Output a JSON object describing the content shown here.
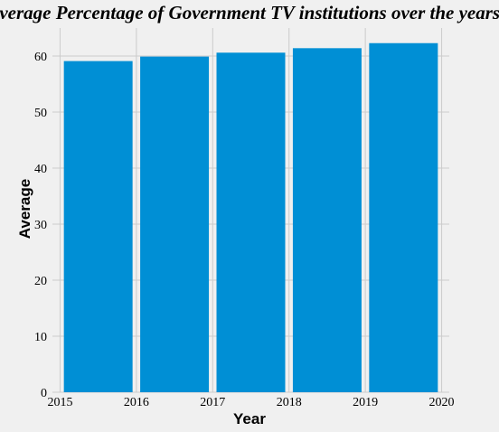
{
  "chart_data": {
    "type": "bar",
    "title": "Average Percentage of Government TV institutions over the years",
    "xlabel": "Year",
    "ylabel": "Average",
    "categories": [
      "2015",
      "2016",
      "2017",
      "2018",
      "2019"
    ],
    "values": [
      59.1,
      59.9,
      60.6,
      61.4,
      62.3
    ],
    "x_ticks": [
      "2015",
      "2016",
      "2017",
      "2018",
      "2019",
      "2020"
    ],
    "y_ticks": [
      "0",
      "10",
      "20",
      "30",
      "40",
      "50",
      "60"
    ],
    "xlim": [
      2014.9,
      2020.1
    ],
    "ylim": [
      0,
      65
    ],
    "grid": true,
    "bar_color": "#008fd5",
    "background_color": "#f0f0f0",
    "grid_color": "#cbcbcb"
  }
}
